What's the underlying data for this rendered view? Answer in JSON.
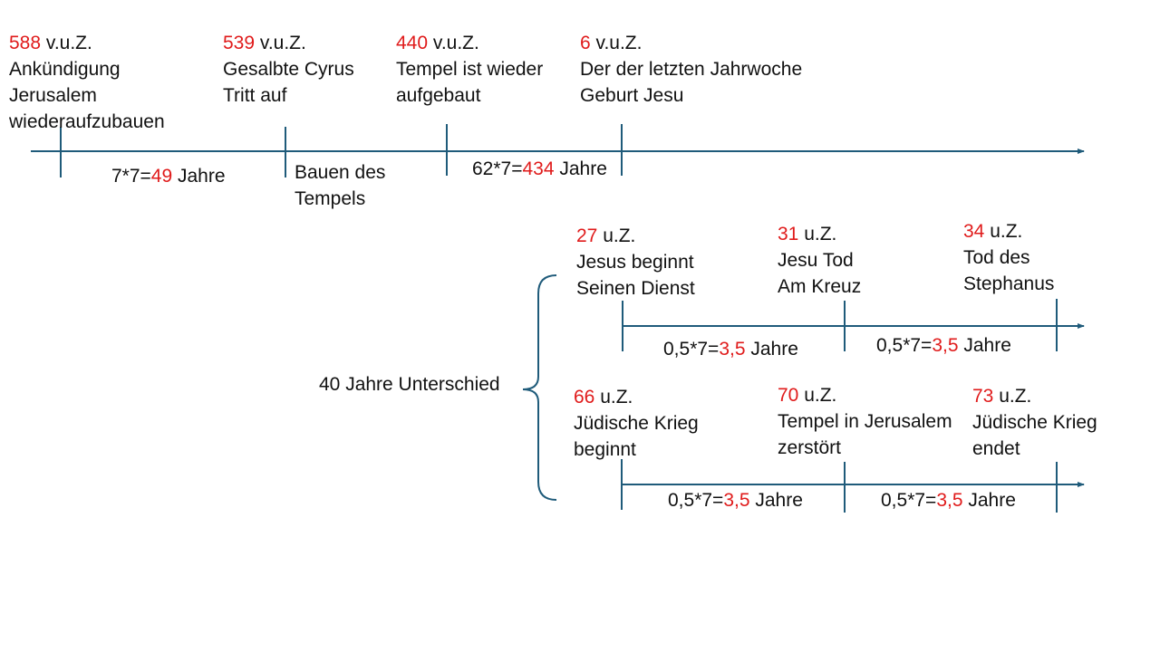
{
  "colors": {
    "line": "#1f5b7a",
    "highlight": "#e01b1b",
    "text": "#111111"
  },
  "top_timeline": {
    "events": [
      {
        "year": "588",
        "era": " v.u.Z.",
        "lines": [
          "Ankündigung",
          "Jerusalem",
          "wiederaufzubauen"
        ]
      },
      {
        "year": "539",
        "era": " v.u.Z.",
        "lines": [
          "Gesalbte Cyrus",
          "Tritt auf"
        ]
      },
      {
        "year": "440",
        "era": " v.u.Z.",
        "lines": [
          "Tempel ist wieder",
          "aufgebaut"
        ]
      },
      {
        "year": "6",
        "era": " v.u.Z.",
        "lines": [
          "Der der letzten Jahrwoche",
          "Geburt Jesu"
        ]
      }
    ],
    "spans": [
      {
        "prefix": "7*7=",
        "value": "49",
        "suffix": " Jahre"
      },
      {
        "prefix": "62*7=",
        "value": "434",
        "suffix": " Jahre"
      }
    ],
    "note_lines": [
      "Bauen des",
      "Tempels"
    ]
  },
  "bracket_label": "40 Jahre Unterschied",
  "middle_timeline": {
    "events": [
      {
        "year": "27",
        "era": " u.Z.",
        "lines": [
          "Jesus beginnt",
          "Seinen Dienst"
        ]
      },
      {
        "year": "31",
        "era": " u.Z.",
        "lines": [
          "Jesu Tod",
          "Am Kreuz"
        ]
      },
      {
        "year": "34",
        "era": " u.Z.",
        "lines": [
          "Tod des",
          "Stephanus"
        ]
      }
    ],
    "spans": [
      {
        "prefix": "0,5*7=",
        "value": "3,5",
        "suffix": " Jahre"
      },
      {
        "prefix": "0,5*7=",
        "value": "3,5",
        "suffix": " Jahre"
      }
    ]
  },
  "bottom_timeline": {
    "events": [
      {
        "year": "66",
        "era": " u.Z.",
        "lines": [
          "Jüdische Krieg",
          "beginnt"
        ]
      },
      {
        "year": "70",
        "era": " u.Z.",
        "lines": [
          "Tempel in Jerusalem",
          "zerstört"
        ]
      },
      {
        "year": "73",
        "era": " u.Z.",
        "lines": [
          "Jüdische Krieg",
          "endet"
        ]
      }
    ],
    "spans": [
      {
        "prefix": "0,5*7=",
        "value": "3,5",
        "suffix": " Jahre"
      },
      {
        "prefix": "0,5*7=",
        "value": "3,5",
        "suffix": " Jahre"
      }
    ]
  }
}
